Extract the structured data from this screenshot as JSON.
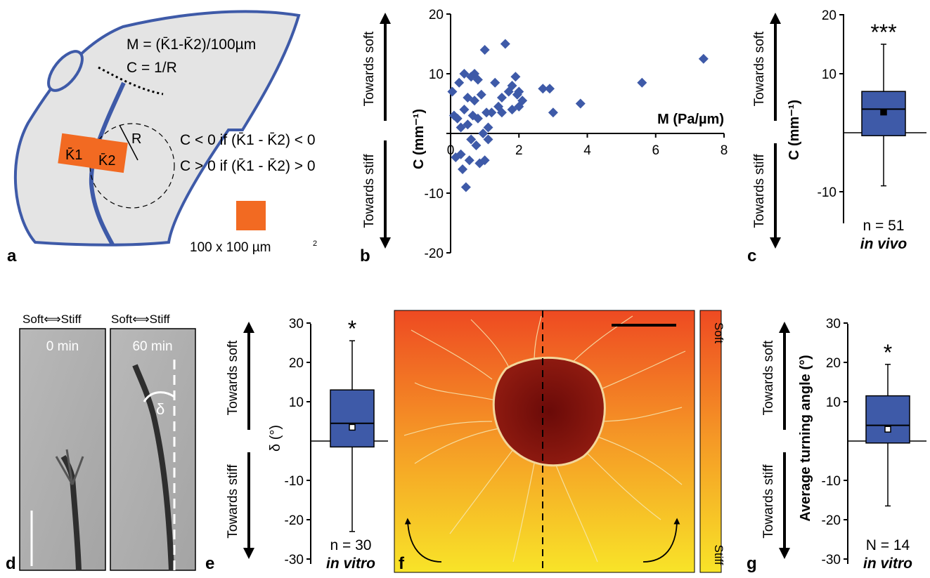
{
  "colors": {
    "blue": "#3e5aa8",
    "orange": "#f26a22",
    "tissue": "#e4e4e4",
    "soft": "#ee4a22",
    "stiff": "#f8e428"
  },
  "panel_a": {
    "label": "a",
    "eq_m": "M = (K̄1-K̄2)/100µm",
    "eq_c": "C = 1/R",
    "r_label": "R",
    "k1": "K̄1",
    "k2": "K̄2",
    "rule1": "C < 0 if (K̄1 - K̄2) < 0",
    "rule2": "C > 0 if (K̄1 - K̄2) > 0",
    "scale_label": "100 x 100 µm",
    "scale_sup": "2"
  },
  "arrows": {
    "soft": "Towards soft",
    "stiff": "Towards stiff"
  },
  "panel_d": {
    "label": "d",
    "header1": "Soft⟺Stiff",
    "header2": "Soft⟺Stiff",
    "time1": "0 min",
    "time2": "60 min",
    "delta": "δ"
  },
  "panel_f": {
    "label": "f",
    "soft": "Soft",
    "stiff": "Stiff"
  },
  "chart_data": [
    {
      "panel": "b",
      "type": "scatter",
      "xlabel": "M (Pa/µm)",
      "ylabel": "C (mm⁻¹)",
      "xlim": [
        0,
        8
      ],
      "ylim": [
        -20,
        20
      ],
      "xticks": [
        "0",
        "2",
        "4",
        "6",
        "8"
      ],
      "yticks": [
        "20",
        "10",
        "0",
        "-10",
        "-20"
      ],
      "points": [
        [
          0.05,
          7
        ],
        [
          0.1,
          3
        ],
        [
          0.15,
          -4
        ],
        [
          0.2,
          2.5
        ],
        [
          0.25,
          8.5
        ],
        [
          0.3,
          1
        ],
        [
          0.3,
          -3.5
        ],
        [
          0.35,
          -6
        ],
        [
          0.4,
          10
        ],
        [
          0.4,
          4
        ],
        [
          0.45,
          -9
        ],
        [
          0.5,
          6
        ],
        [
          0.5,
          1.5
        ],
        [
          0.55,
          -4.5
        ],
        [
          0.6,
          9.5
        ],
        [
          0.6,
          -1
        ],
        [
          0.65,
          3
        ],
        [
          0.7,
          10
        ],
        [
          0.7,
          5.5
        ],
        [
          0.75,
          -2
        ],
        [
          0.8,
          9
        ],
        [
          0.8,
          2.5
        ],
        [
          0.85,
          -5
        ],
        [
          0.9,
          6.5
        ],
        [
          0.95,
          0
        ],
        [
          1.0,
          14
        ],
        [
          1.0,
          -4.5
        ],
        [
          1.05,
          3.5
        ],
        [
          1.1,
          1
        ],
        [
          1.1,
          -1
        ],
        [
          1.2,
          3.5
        ],
        [
          1.3,
          8.5
        ],
        [
          1.4,
          4.5
        ],
        [
          1.5,
          3.5
        ],
        [
          1.5,
          6
        ],
        [
          1.6,
          15
        ],
        [
          1.7,
          7
        ],
        [
          1.8,
          4
        ],
        [
          1.8,
          8
        ],
        [
          1.9,
          9.5
        ],
        [
          1.95,
          6.5
        ],
        [
          2.0,
          4.5
        ],
        [
          2.0,
          7
        ],
        [
          2.1,
          5.5
        ],
        [
          2.7,
          7.5
        ],
        [
          2.9,
          7.5
        ],
        [
          3.0,
          3.5
        ],
        [
          3.8,
          5
        ],
        [
          5.6,
          8.5
        ],
        [
          7.4,
          12.5
        ]
      ]
    },
    {
      "panel": "c",
      "type": "box",
      "ylabel": "C (mm⁻¹)",
      "ylim": [
        -15,
        20
      ],
      "yticks": [
        "20",
        "10",
        "-10"
      ],
      "box": {
        "whisker_low": -9,
        "q1": -0.5,
        "median": 4,
        "q3": 7,
        "whisker_high": 15,
        "mean": 3.5
      },
      "significance": "***",
      "n_label": "n = 51",
      "condition": "in vivo"
    },
    {
      "panel": "e",
      "type": "box",
      "ylabel": "δ (°)",
      "ylim": [
        -30,
        30
      ],
      "yticks": [
        "30",
        "20",
        "10",
        "-10",
        "-20",
        "-30"
      ],
      "box": {
        "whisker_low": -23,
        "q1": -1.5,
        "median": 4.5,
        "q3": 13,
        "whisker_high": 25.5,
        "mean": 3.5
      },
      "significance": "*",
      "n_label": "n = 30",
      "condition": "in vitro"
    },
    {
      "panel": "g",
      "type": "box",
      "ylabel": "Average turning angle (°)",
      "ylim": [
        -30,
        30
      ],
      "yticks": [
        "30",
        "20",
        "10",
        "-10",
        "-20",
        "-30"
      ],
      "box": {
        "whisker_low": -16.5,
        "q1": -0.5,
        "median": 4,
        "q3": 11.5,
        "whisker_high": 19.5,
        "mean": 3
      },
      "significance": "*",
      "n_label": "N = 14",
      "condition": "in vitro"
    }
  ]
}
